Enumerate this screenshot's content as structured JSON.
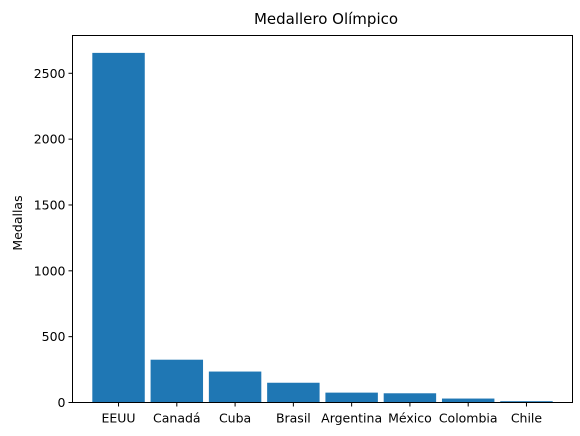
{
  "chart_data": {
    "type": "bar",
    "title": "Medallero Olímpico",
    "xlabel": "",
    "ylabel": "Medallas",
    "categories": [
      "EEUU",
      "Canadá",
      "Cuba",
      "Brasil",
      "Argentina",
      "México",
      "Colombia",
      "Chile"
    ],
    "values": [
      2655,
      325,
      235,
      150,
      75,
      70,
      30,
      10
    ],
    "ylim": [
      0,
      2787
    ],
    "yticks": [
      "0",
      "500",
      "1000",
      "1500",
      "2000",
      "2500"
    ],
    "bar_color": "#1f77b4",
    "grid": false,
    "legend": "none"
  }
}
